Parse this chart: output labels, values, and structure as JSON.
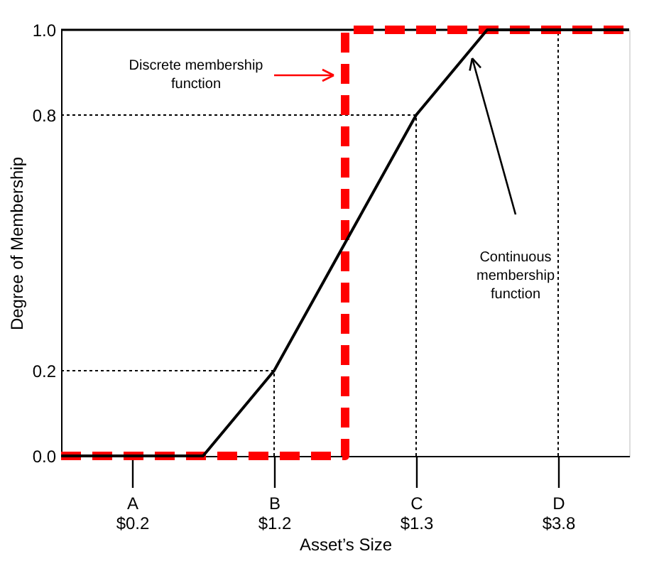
{
  "chart_data": {
    "type": "line",
    "xlabel": "Asset’s Size",
    "ylabel": "Degree of Membership",
    "categories": [
      null,
      "A\n$0.2",
      null,
      "B\n$1.2",
      null,
      "C\n$1.3",
      null,
      "D\n$3.8",
      null
    ],
    "ylim": [
      0,
      1
    ],
    "yticks": [
      {
        "value": 0,
        "label": "0.0"
      },
      {
        "value": 0.2,
        "label": "0.2"
      },
      {
        "value": 0.8,
        "label": "0.8"
      },
      {
        "value": 1,
        "label": "1.0"
      }
    ],
    "series": [
      {
        "type": "step",
        "color": "#ff0000",
        "line_style": "dashed",
        "values": [
          0,
          0,
          0,
          0,
          1,
          1,
          1,
          1,
          1
        ]
      },
      {
        "color": "#000000",
        "line_style": "solid",
        "values": [
          0,
          0,
          0,
          0.2,
          0.5,
          0.8,
          1,
          1,
          1
        ]
      }
    ],
    "ref_lines": [
      {
        "axis": "y",
        "value": 0.2,
        "line_style": "dotted",
        "color": "#000000"
      },
      {
        "axis": "y",
        "value": 0.8,
        "line_style": "dotted",
        "color": "#000000"
      },
      {
        "axis": "x",
        "value": "B\n$1.2",
        "line_style": "dotted",
        "color": "#000000"
      },
      {
        "axis": "x",
        "value": "C\n$1.3",
        "line_style": "dotted",
        "color": "#000000"
      },
      {
        "axis": "x",
        "value": "D\n$3.8",
        "line_style": "dotted",
        "color": "#000000"
      }
    ],
    "annotations": [
      "Discrete membership\nfunction",
      "Continuous\nmembership\nfunction"
    ],
    "grid": false
  }
}
